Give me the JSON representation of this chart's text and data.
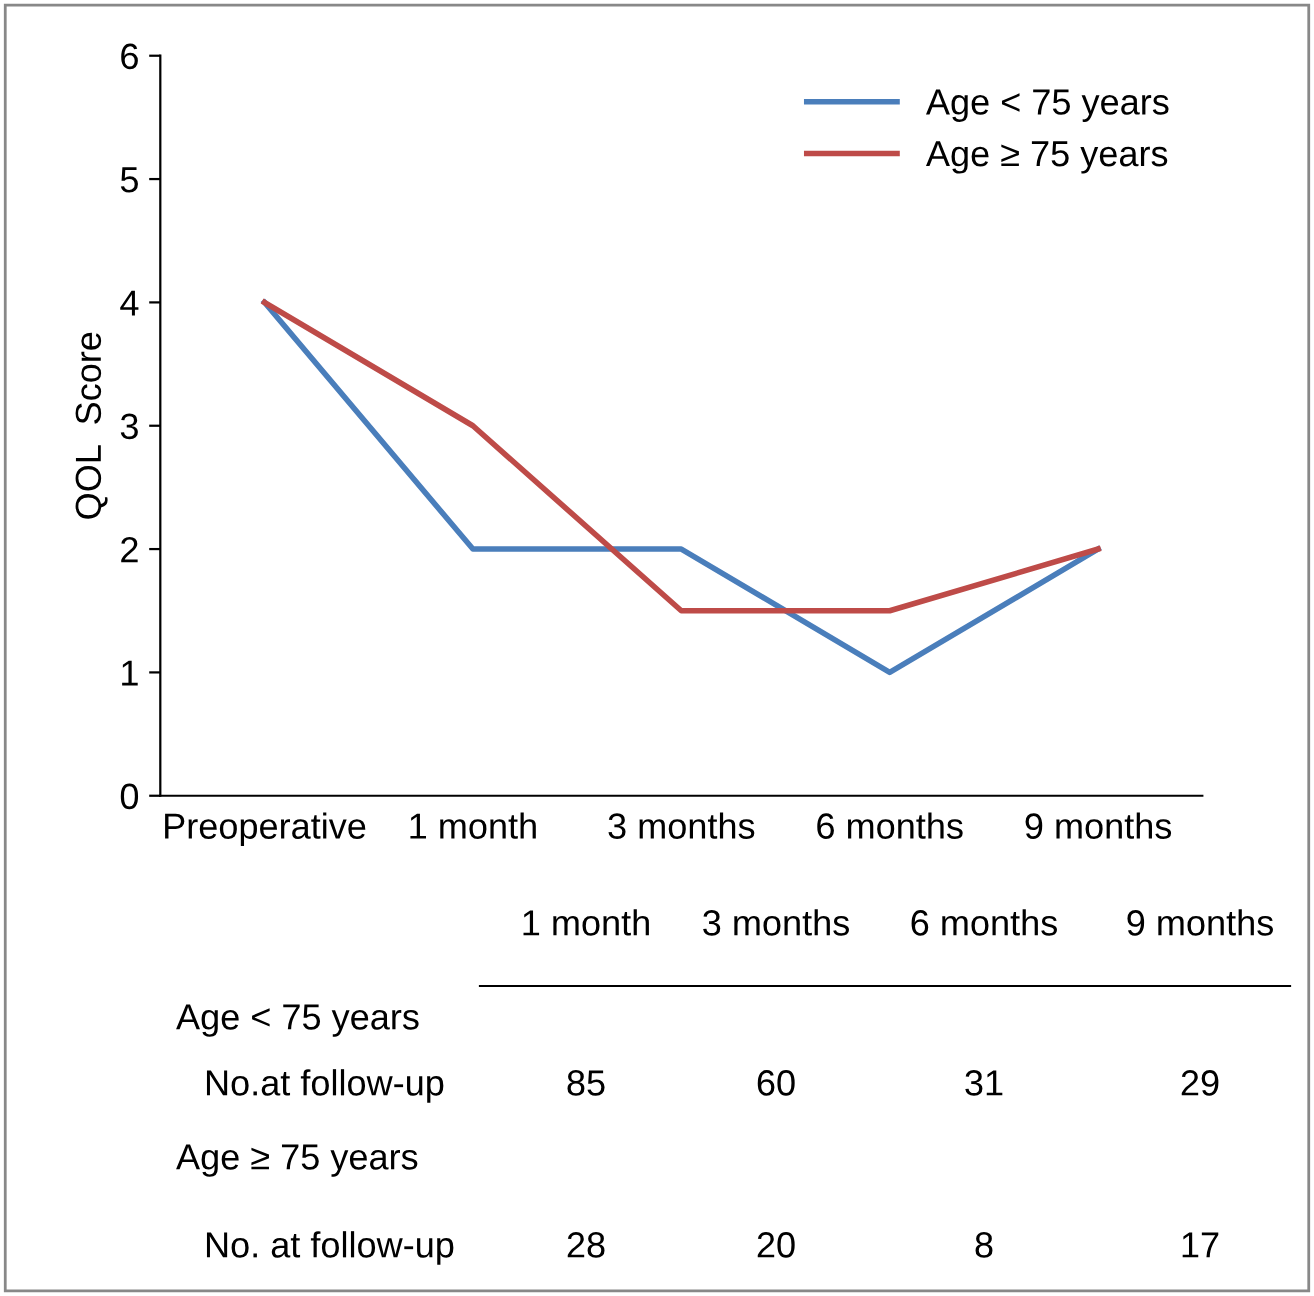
{
  "chart_data": {
    "type": "line",
    "ylabel": "QOL  Score",
    "categories": [
      "Preoperative",
      "1 month",
      "3 months",
      "6 months",
      "9 months"
    ],
    "series": [
      {
        "name": "Age < 75 years",
        "color": "#4a7ebb",
        "values": [
          4,
          2,
          2,
          1,
          2
        ]
      },
      {
        "name": "Age ≥ 75 years",
        "color": "#be4b48",
        "values": [
          4,
          3,
          1.5,
          1.5,
          2
        ]
      }
    ],
    "ylim": [
      0,
      6
    ],
    "yticks": [
      0,
      1,
      2,
      3,
      4,
      5,
      6
    ],
    "grid": false,
    "legend": "top right",
    "marker": "none",
    "line_style": "solid",
    "annotations": [
      "1 month",
      "3 months",
      "6 months",
      "9 months",
      "Age < 75 years",
      "No.at follow-up",
      "85",
      "60",
      "31",
      "29",
      "Age ≥ 75 years",
      "No. at follow-up",
      "28",
      "20",
      "8",
      "17"
    ]
  }
}
